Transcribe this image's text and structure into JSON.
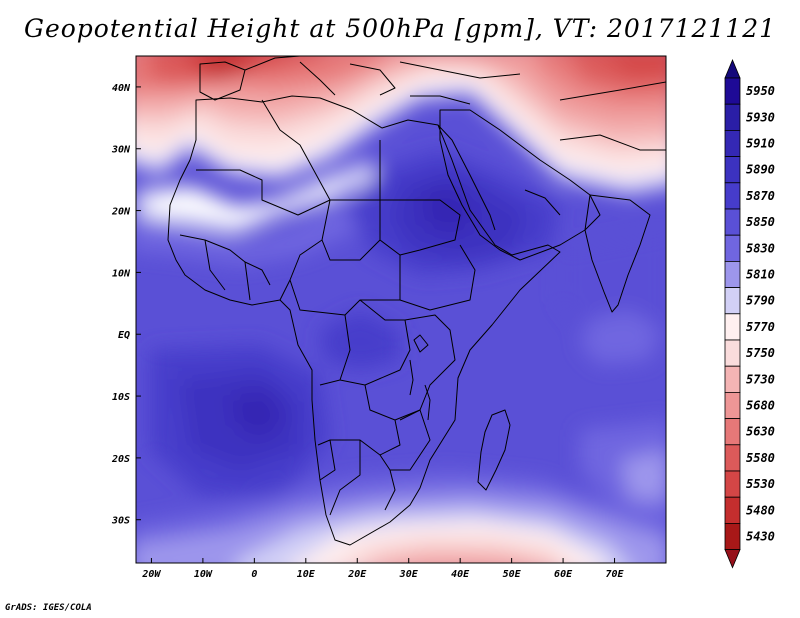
{
  "title": "Geopotential Height at 500hPa [gpm], VT: 2017121121",
  "credit": "GrADS: IGES/COLA",
  "map": {
    "lon_range": [
      -23,
      80
    ],
    "lat_range": [
      -37,
      45
    ],
    "lon_ticks": [
      {
        "lon": -20,
        "label": "20W"
      },
      {
        "lon": -10,
        "label": "10W"
      },
      {
        "lon": 0,
        "label": "0"
      },
      {
        "lon": 10,
        "label": "10E"
      },
      {
        "lon": 20,
        "label": "20E"
      },
      {
        "lon": 30,
        "label": "30E"
      },
      {
        "lon": 40,
        "label": "40E"
      },
      {
        "lon": 50,
        "label": "50E"
      },
      {
        "lon": 60,
        "label": "60E"
      },
      {
        "lon": 70,
        "label": "70E"
      }
    ],
    "lat_ticks": [
      {
        "lat": 40,
        "label": "40N"
      },
      {
        "lat": 30,
        "label": "30N"
      },
      {
        "lat": 20,
        "label": "20N"
      },
      {
        "lat": 10,
        "label": "10N"
      },
      {
        "lat": 0,
        "label": "EQ"
      },
      {
        "lat": -10,
        "label": "10S"
      },
      {
        "lat": -20,
        "label": "20S"
      },
      {
        "lat": -30,
        "label": "30S"
      }
    ]
  },
  "colorbar": {
    "levels": [
      {
        "label": "5950",
        "color": "#1e0a96"
      },
      {
        "label": "5930",
        "color": "#2a1ea6"
      },
      {
        "label": "5910",
        "color": "#3428b4"
      },
      {
        "label": "5890",
        "color": "#3c32c0"
      },
      {
        "label": "5870",
        "color": "#463ccb"
      },
      {
        "label": "5850",
        "color": "#5a50d6"
      },
      {
        "label": "5830",
        "color": "#7066e0"
      },
      {
        "label": "5810",
        "color": "#9d96ec"
      },
      {
        "label": "5790",
        "color": "#d2d0f6"
      },
      {
        "label": "5770",
        "color": "#fff0f0"
      },
      {
        "label": "5750",
        "color": "#fadcdc"
      },
      {
        "label": "5730",
        "color": "#f4b4b4"
      },
      {
        "label": "5680",
        "color": "#ee9696"
      },
      {
        "label": "5630",
        "color": "#e67878"
      },
      {
        "label": "5580",
        "color": "#dc5a5a"
      },
      {
        "label": "5530",
        "color": "#d44646"
      },
      {
        "label": "5480",
        "color": "#c42e2e"
      },
      {
        "label": "5430",
        "color": "#a81818"
      }
    ],
    "top_arrow_color": "#14087a",
    "bottom_arrow_color": "#96101a"
  }
}
